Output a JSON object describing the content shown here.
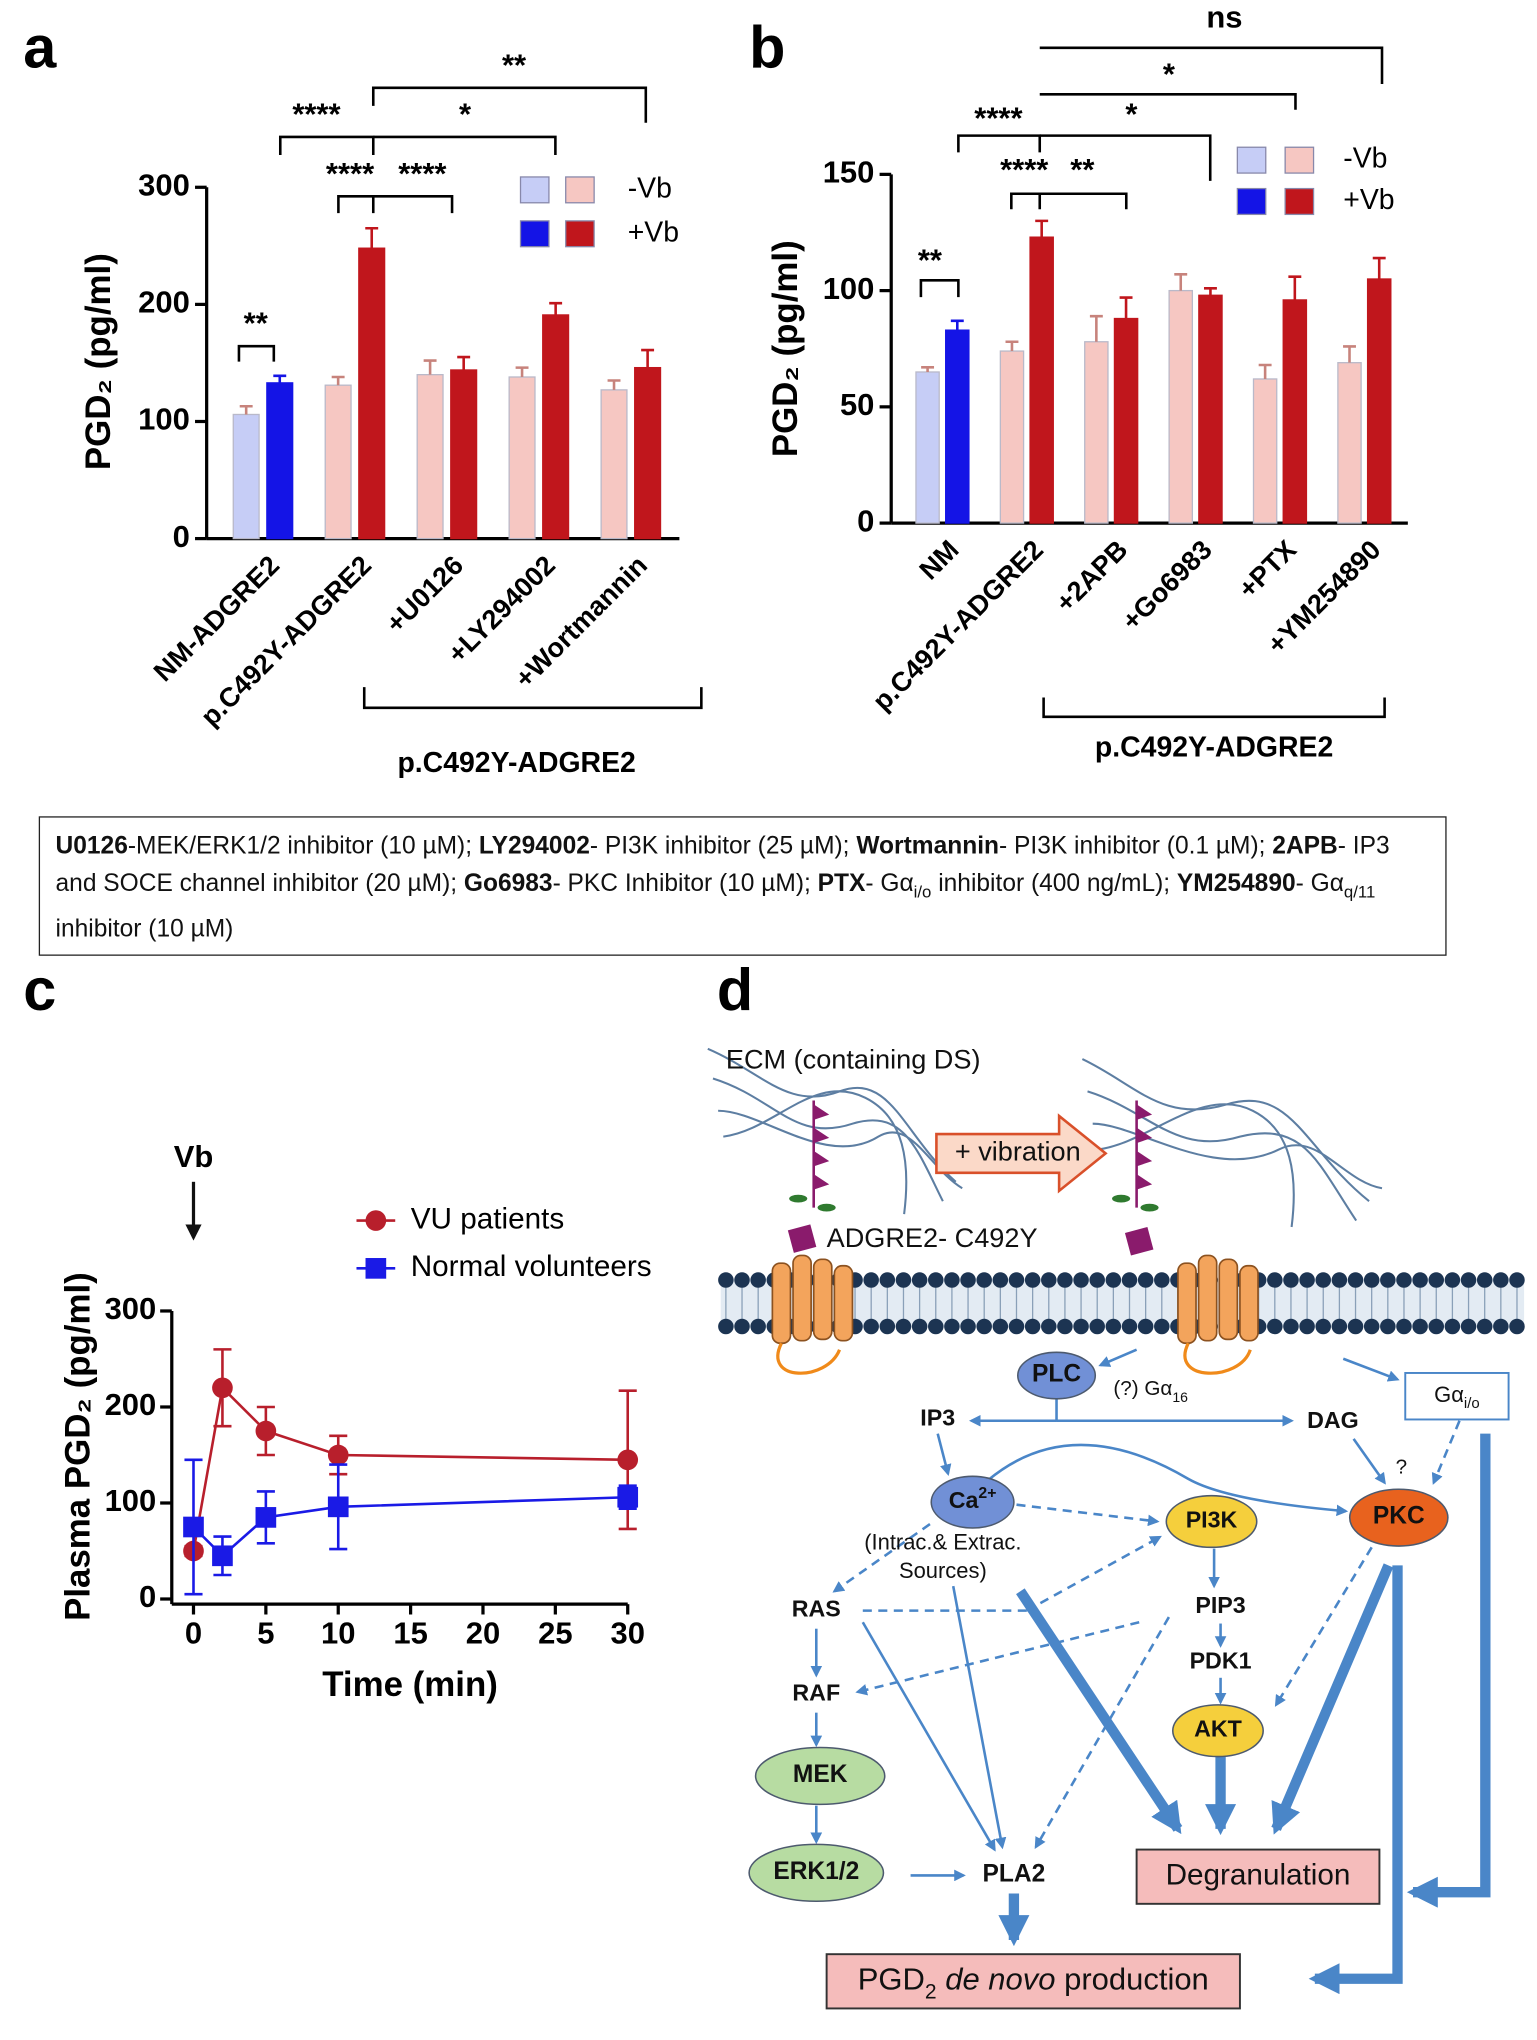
{
  "chart_data": [
    {
      "type": "bar",
      "panel": "a",
      "ylabel": "PGD₂ (pg/ml)",
      "categories": [
        "NM-ADGRE2",
        "p.C492Y-ADGRE2",
        "+U0126",
        "+LY294002",
        "+Wortmannin"
      ],
      "series": [
        {
          "name": "-Vb",
          "color": [
            "#c6cdf6",
            "#f6c7c2",
            "#f6c7c2",
            "#f6c7c2",
            "#f6c7c2"
          ],
          "values": [
            106,
            131,
            140,
            138,
            127
          ],
          "errors": [
            7,
            7,
            12,
            8,
            8
          ]
        },
        {
          "name": "+Vb",
          "color": [
            "#1414e6",
            "#c0161c",
            "#c0161c",
            "#c0161c",
            "#c0161c"
          ],
          "values": [
            133,
            248,
            144,
            191,
            146
          ],
          "errors": [
            6,
            17,
            11,
            10,
            15
          ]
        }
      ],
      "ylim": [
        0,
        300
      ],
      "yticks": [
        0,
        100,
        200,
        300
      ],
      "significance": [
        "**",
        "****",
        "****",
        "****",
        "*",
        "**"
      ],
      "group_label": "p.C492Y-ADGRE2"
    },
    {
      "type": "bar",
      "panel": "b",
      "ylabel": "PGD₂ (pg/ml)",
      "categories": [
        "NM",
        "p.C492Y-ADGRE2",
        "+2APB",
        "+Go6983",
        "+PTX",
        "+YM254890"
      ],
      "series": [
        {
          "name": "-Vb",
          "color": [
            "#c6cdf6",
            "#f6c7c2",
            "#f6c7c2",
            "#f6c7c2",
            "#f6c7c2",
            "#f6c7c2"
          ],
          "values": [
            65,
            74,
            78,
            100,
            62,
            69
          ],
          "errors": [
            2,
            4,
            11,
            7,
            6,
            7
          ]
        },
        {
          "name": "+Vb",
          "color": [
            "#1414e6",
            "#c0161c",
            "#c0161c",
            "#c0161c",
            "#c0161c",
            "#c0161c"
          ],
          "values": [
            83,
            123,
            88,
            98,
            96,
            105
          ],
          "errors": [
            4,
            7,
            9,
            3,
            10,
            9
          ]
        }
      ],
      "ylim": [
        0,
        150
      ],
      "yticks": [
        0,
        50,
        100,
        150
      ],
      "significance": [
        "**",
        "****",
        "****",
        "**",
        "*",
        "*",
        "ns"
      ],
      "group_label": "p.C492Y-ADGRE2"
    },
    {
      "type": "line",
      "panel": "c",
      "xlabel": "Time (min)",
      "ylabel": "Plasma PGD₂ (pg/ml)",
      "annotation": "Vb",
      "x": [
        0,
        2,
        5,
        10,
        30
      ],
      "series": [
        {
          "name": "VU patients",
          "color": "#b81f2c",
          "marker": "circle",
          "values": [
            50,
            220,
            175,
            150,
            145
          ],
          "errors": [
            5,
            40,
            25,
            20,
            72
          ]
        },
        {
          "name": "Normal volunteers",
          "color": "#1a1ae6",
          "marker": "square",
          "values": [
            75,
            45,
            85,
            96,
            106
          ],
          "errors": [
            70,
            20,
            27,
            44,
            12
          ]
        }
      ],
      "xlim": [
        -1.5,
        30
      ],
      "xticks": [
        0,
        5,
        10,
        15,
        20,
        25,
        30
      ],
      "ylim": [
        0,
        300
      ],
      "yticks": [
        0,
        100,
        200,
        300
      ]
    }
  ],
  "note": [
    {
      "name": "U0126",
      "desc": "-MEK/ERK1/2 inhibitor (10 µM); "
    },
    {
      "name": "LY294002",
      "desc": "- PI3K  inhibitor (25 µM); "
    },
    {
      "name": "Wortmannin",
      "desc": "- PI3K  inhibitor (0.1 µM); "
    },
    {
      "name": "2APB",
      "desc": "- IP3 and SOCE channel inhibitor (20 µM); "
    },
    {
      "name": "Go6983",
      "desc": "- PKC Inhibitor (10 µM); "
    },
    {
      "name": "PTX",
      "desc": "- Gα",
      "sub": "i/o",
      "after": " inhibitor (400 ng/mL); "
    },
    {
      "name": "YM254890",
      "desc": "- Gα",
      "sub": "q/11",
      "after": " inhibitor (10 µM)"
    }
  ],
  "diagram": {
    "panel": "d",
    "labels": [
      [
        {
          "text": "ECM (containing DS)"
        }
      ],
      [
        {
          "text": "+ vibration"
        }
      ],
      [
        {
          "text": "ADGRE2- C492Y"
        }
      ],
      [
        {
          "text": "PLC"
        }
      ],
      [
        {
          "text": "(?) Gα"
        },
        {
          "sub": "16"
        }
      ],
      [
        {
          "text": "Gα"
        },
        {
          "sub": "i/o"
        }
      ],
      [
        {
          "text": "IP3"
        }
      ],
      [
        {
          "text": "DAG"
        }
      ],
      [
        {
          "text": "Ca"
        },
        {
          "sup": "2+"
        }
      ],
      [
        {
          "text": "(Intrac.& Extrac."
        }
      ],
      [
        {
          "text": "Sources)"
        }
      ],
      [
        {
          "text": "PI3K"
        }
      ],
      [
        {
          "text": "PKC"
        }
      ],
      [
        {
          "text": "?"
        }
      ],
      [
        {
          "text": "RAS"
        }
      ],
      [
        {
          "text": "PIP3"
        }
      ],
      [
        {
          "text": "PDK1"
        }
      ],
      [
        {
          "text": "RAF"
        }
      ],
      [
        {
          "text": "AKT"
        }
      ],
      [
        {
          "text": "MEK"
        }
      ],
      [
        {
          "text": "ERK1/2"
        }
      ],
      [
        {
          "text": "PLA2"
        }
      ],
      [
        {
          "text": "Degranulation"
        }
      ],
      [
        {
          "text": "PGD"
        },
        {
          "sub": "2"
        },
        {
          "italic": " de novo"
        },
        {
          "text": " production"
        }
      ]
    ]
  }
}
